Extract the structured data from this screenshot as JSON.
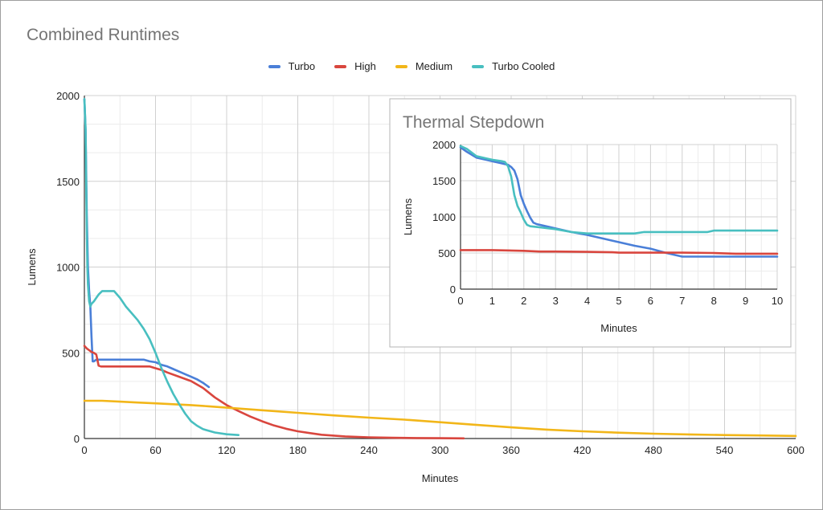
{
  "chart_data": [
    {
      "id": "main",
      "type": "line",
      "title": "Combined Runtimes",
      "xlabel": "Minutes",
      "ylabel": "Lumens",
      "xlim": [
        0,
        600
      ],
      "ylim": [
        0,
        2000
      ],
      "x_ticks": [
        0,
        60,
        120,
        180,
        240,
        300,
        360,
        420,
        480,
        540,
        600
      ],
      "y_ticks": [
        0,
        500,
        1000,
        1500,
        2000
      ],
      "grid": true,
      "legend": "top-center",
      "series": [
        {
          "name": "Turbo",
          "color": "#4a7fd8",
          "x": [
            0,
            1,
            2,
            3,
            4,
            5,
            6,
            7,
            8,
            10,
            15,
            20,
            30,
            40,
            50,
            55,
            60,
            65,
            70,
            75,
            80,
            85,
            90,
            95,
            100,
            105
          ],
          "y": [
            1980,
            1800,
            1300,
            1000,
            860,
            770,
            600,
            450,
            450,
            460,
            460,
            460,
            460,
            460,
            460,
            450,
            445,
            430,
            420,
            405,
            390,
            375,
            360,
            345,
            325,
            300
          ]
        },
        {
          "name": "High",
          "color": "#d9463e",
          "x": [
            0,
            2,
            4,
            6,
            8,
            10,
            12,
            14,
            20,
            30,
            40,
            50,
            55,
            60,
            65,
            70,
            80,
            90,
            100,
            110,
            120,
            130,
            140,
            150,
            160,
            170,
            180,
            200,
            220,
            240,
            260,
            280,
            300,
            320
          ],
          "y": [
            540,
            525,
            515,
            505,
            500,
            490,
            425,
            420,
            420,
            420,
            420,
            420,
            420,
            410,
            400,
            385,
            360,
            335,
            295,
            240,
            195,
            160,
            128,
            100,
            76,
            57,
            42,
            22,
            12,
            7,
            4,
            3,
            2,
            1
          ]
        },
        {
          "name": "Medium",
          "color": "#f2b619",
          "x": [
            0,
            15,
            30,
            45,
            60,
            75,
            90,
            105,
            120,
            150,
            180,
            210,
            240,
            270,
            300,
            330,
            360,
            390,
            420,
            450,
            480,
            510,
            540,
            570,
            600
          ],
          "y": [
            220,
            220,
            215,
            210,
            205,
            200,
            195,
            188,
            180,
            165,
            150,
            135,
            122,
            110,
            95,
            80,
            65,
            52,
            42,
            34,
            28,
            24,
            20,
            18,
            15
          ]
        },
        {
          "name": "Turbo Cooled",
          "color": "#48bfc0",
          "x": [
            0,
            0.5,
            1,
            1.5,
            2,
            2.5,
            3,
            4,
            5,
            6,
            8,
            10,
            12,
            15,
            20,
            25,
            30,
            35,
            40,
            45,
            50,
            55,
            60,
            65,
            70,
            75,
            80,
            85,
            90,
            95,
            100,
            110,
            120,
            130
          ],
          "y": [
            1980,
            1900,
            1800,
            1500,
            1200,
            1000,
            900,
            800,
            770,
            785,
            800,
            820,
            840,
            860,
            860,
            860,
            820,
            770,
            730,
            690,
            640,
            580,
            500,
            410,
            330,
            260,
            200,
            145,
            100,
            75,
            55,
            35,
            25,
            20
          ]
        }
      ]
    },
    {
      "id": "inset",
      "type": "line",
      "title": "Thermal Stepdown",
      "xlabel": "Minutes",
      "ylabel": "Lumens",
      "xlim": [
        0,
        10
      ],
      "ylim": [
        0,
        2000
      ],
      "x_ticks": [
        0,
        1,
        2,
        3,
        4,
        5,
        6,
        7,
        8,
        9,
        10
      ],
      "y_ticks": [
        0,
        500,
        1000,
        1500,
        2000
      ],
      "grid": true,
      "series": [
        {
          "name": "Turbo",
          "color": "#4a7fd8",
          "x": [
            0,
            0.2,
            0.5,
            0.8,
            1.0,
            1.3,
            1.5,
            1.6,
            1.7,
            1.8,
            1.9,
            2.0,
            2.1,
            2.2,
            2.3,
            2.4,
            2.6,
            3.0,
            3.5,
            4.0,
            4.5,
            5.0,
            5.5,
            6.0,
            6.5,
            7.0,
            7.5,
            8.0,
            9.0,
            10.0
          ],
          "y": [
            1960,
            1900,
            1820,
            1790,
            1770,
            1740,
            1720,
            1690,
            1640,
            1520,
            1300,
            1180,
            1080,
            990,
            920,
            900,
            880,
            840,
            790,
            750,
            700,
            650,
            600,
            560,
            500,
            450,
            450,
            450,
            450,
            450
          ]
        },
        {
          "name": "High",
          "color": "#d9463e",
          "x": [
            0,
            1,
            2,
            2.5,
            3,
            4,
            4.8,
            5,
            6,
            7,
            8,
            8.7,
            9,
            10
          ],
          "y": [
            540,
            540,
            530,
            520,
            520,
            515,
            510,
            505,
            505,
            505,
            500,
            490,
            490,
            490
          ]
        },
        {
          "name": "Turbo Cooled",
          "color": "#48bfc0",
          "x": [
            0,
            0.2,
            0.5,
            0.8,
            1.0,
            1.3,
            1.4,
            1.5,
            1.6,
            1.7,
            1.8,
            1.9,
            2.0,
            2.1,
            2.2,
            2.4,
            2.6,
            3.0,
            3.5,
            4.0,
            4.5,
            5.0,
            5.5,
            5.8,
            6.0,
            7.0,
            7.8,
            8.0,
            9.0,
            10.0
          ],
          "y": [
            1980,
            1940,
            1840,
            1810,
            1790,
            1770,
            1760,
            1700,
            1560,
            1300,
            1150,
            1060,
            960,
            890,
            870,
            860,
            850,
            830,
            790,
            770,
            770,
            770,
            770,
            790,
            790,
            790,
            790,
            810,
            810,
            810
          ]
        }
      ]
    }
  ],
  "legend_items": [
    {
      "label": "Turbo",
      "color": "#4a7fd8"
    },
    {
      "label": "High",
      "color": "#d9463e"
    },
    {
      "label": "Medium",
      "color": "#f2b619"
    },
    {
      "label": "Turbo Cooled",
      "color": "#48bfc0"
    }
  ]
}
